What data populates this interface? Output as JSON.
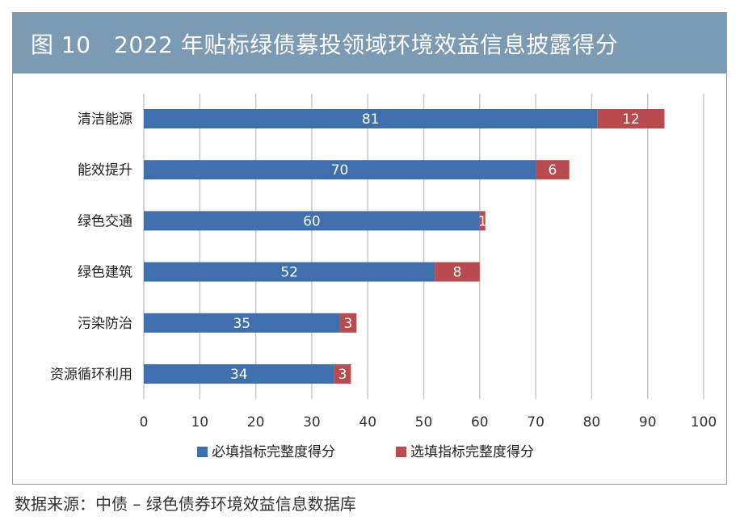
{
  "figure": {
    "title": "图 10　2022 年贴标绿债募投领域环境效益信息披露得分",
    "source": "数据来源：中债 – 绿色债券环境效益信息数据库"
  },
  "colors": {
    "title_bg": "#7b9ab4",
    "series_required": "#3f6fac",
    "series_optional": "#b94a4e",
    "grid": "#c8c8c8"
  },
  "chart_data": {
    "type": "bar",
    "orientation": "horizontal",
    "stacked": true,
    "categories": [
      "清洁能源",
      "能效提升",
      "绿色交通",
      "绿色建筑",
      "污染防治",
      "资源循环利用"
    ],
    "series": [
      {
        "name": "必填指标完整度得分",
        "values": [
          81,
          70,
          60,
          52,
          35,
          34
        ]
      },
      {
        "name": "选填指标完整度得分",
        "values": [
          12,
          6,
          1,
          8,
          3,
          3
        ]
      }
    ],
    "xlim": [
      0,
      100
    ],
    "xticks": [
      0,
      10,
      20,
      30,
      40,
      50,
      60,
      70,
      80,
      90,
      100
    ],
    "grid": true,
    "legend": "bottom"
  }
}
